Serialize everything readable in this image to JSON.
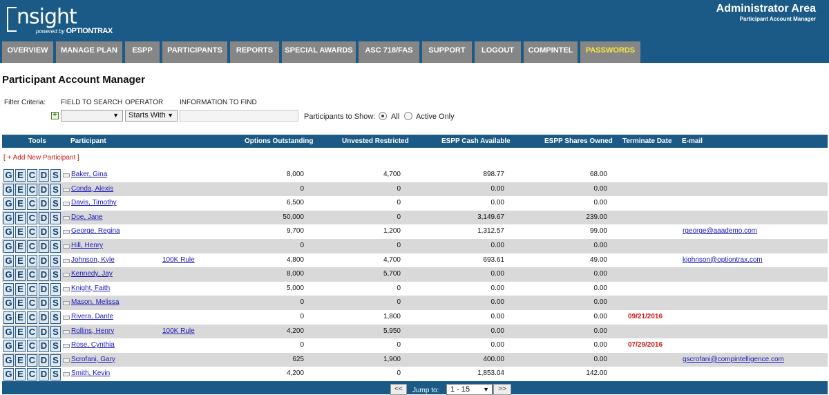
{
  "header": {
    "logo_text": "nsight",
    "logo_powered": "powered by",
    "logo_brand": "OPTIONTRAX",
    "admin_title": "Administrator Area",
    "admin_subtitle": "Participant Account Manager"
  },
  "nav": {
    "items": [
      {
        "label": "OVERVIEW"
      },
      {
        "label": "MANAGE PLAN"
      },
      {
        "label": "ESPP"
      },
      {
        "label": "PARTICIPANTS"
      },
      {
        "label": "REPORTS"
      },
      {
        "label": "SPECIAL AWARDS"
      },
      {
        "label": "ASC 718/FAS"
      },
      {
        "label": "SUPPORT"
      },
      {
        "label": "LOGOUT"
      },
      {
        "label": "COMPINTEL"
      },
      {
        "label": "PASSWORDS"
      }
    ]
  },
  "page_title": "Participant Account Manager",
  "filter": {
    "criteria_label": "Filter Criteria:",
    "field_label": "FIELD TO SEARCH",
    "operator_label": "OPERATOR",
    "info_label": "INFORMATION TO FIND",
    "field_value": "",
    "operator_value": "Starts With",
    "info_value": "",
    "show_label": "Participants to Show:",
    "all_label": "All",
    "active_label": "Active Only"
  },
  "table": {
    "headers": {
      "tools": "Tools",
      "participant": "Participant",
      "options": "Options Outstanding",
      "unvested": "Unvested Restricted",
      "espp_cash": "ESPP Cash Available",
      "espp_shares": "ESPP Shares Owned",
      "terminate": "Terminate Date",
      "email": "E-mail"
    },
    "add_label": "[ + Add New Participant ]",
    "tool_buttons": [
      "G",
      "E",
      "C",
      "D",
      "S"
    ],
    "rows": [
      {
        "name": "Baker, Gina",
        "rule": "",
        "options": "8,000",
        "unvested": "4,700",
        "cash": "898.77",
        "shares": "68.00",
        "terminate": "",
        "email": ""
      },
      {
        "name": "Conda, Alexis",
        "rule": "",
        "options": "0",
        "unvested": "0",
        "cash": "0.00",
        "shares": "0.00",
        "terminate": "",
        "email": ""
      },
      {
        "name": "Davis, Timothy",
        "rule": "",
        "options": "6,500",
        "unvested": "0",
        "cash": "0.00",
        "shares": "0.00",
        "terminate": "",
        "email": ""
      },
      {
        "name": "Doe, Jane",
        "rule": "",
        "options": "50,000",
        "unvested": "0",
        "cash": "3,149.67",
        "shares": "239.00",
        "terminate": "",
        "email": ""
      },
      {
        "name": "George, Regina",
        "rule": "",
        "options": "9,700",
        "unvested": "1,200",
        "cash": "1,312.57",
        "shares": "99.00",
        "terminate": "",
        "email": "rgeorge@aaademo.com"
      },
      {
        "name": "Hill, Henry",
        "rule": "",
        "options": "0",
        "unvested": "0",
        "cash": "0.00",
        "shares": "0.00",
        "terminate": "",
        "email": ""
      },
      {
        "name": "Johnson, Kyle",
        "rule": "100K Rule",
        "options": "4,800",
        "unvested": "4,700",
        "cash": "693.61",
        "shares": "49.00",
        "terminate": "",
        "email": "kjohnson@optiontrax.com"
      },
      {
        "name": "Kennedy, Jay",
        "rule": "",
        "options": "8,000",
        "unvested": "5,700",
        "cash": "0.00",
        "shares": "0.00",
        "terminate": "",
        "email": ""
      },
      {
        "name": "Knight, Faith",
        "rule": "",
        "options": "5,000",
        "unvested": "0",
        "cash": "0.00",
        "shares": "0.00",
        "terminate": "",
        "email": ""
      },
      {
        "name": "Mason, Melissa",
        "rule": "",
        "options": "0",
        "unvested": "0",
        "cash": "0.00",
        "shares": "0.00",
        "terminate": "",
        "email": ""
      },
      {
        "name": "Rivera, Dante",
        "rule": "",
        "options": "0",
        "unvested": "1,800",
        "cash": "0.00",
        "shares": "0.00",
        "terminate": "09/21/2016",
        "email": ""
      },
      {
        "name": "Rollins, Henry",
        "rule": "100K Rule",
        "options": "4,200",
        "unvested": "5,950",
        "cash": "0.00",
        "shares": "0.00",
        "terminate": "",
        "email": ""
      },
      {
        "name": "Rose, Cynthia",
        "rule": "",
        "options": "0",
        "unvested": "0",
        "cash": "0.00",
        "shares": "0.00",
        "terminate": "07/29/2016",
        "email": ""
      },
      {
        "name": "Scrofani, Gary",
        "rule": "",
        "options": "625",
        "unvested": "1,900",
        "cash": "400.00",
        "shares": "0.00",
        "terminate": "",
        "email": "gscrofani@compintelligence.com"
      },
      {
        "name": "Smith, Kevin",
        "rule": "",
        "options": "4,200",
        "unvested": "0",
        "cash": "1,853.04",
        "shares": "142.00",
        "terminate": "",
        "email": ""
      }
    ]
  },
  "pagination": {
    "prev": "<<",
    "next": ">>",
    "jump_label": "Jump to:",
    "jump_value": "1 - 15"
  },
  "colors": {
    "header_bg": "#1b5a86",
    "nav_tab": "#868686",
    "nav_highlight_text": "#f5e93f",
    "alert_red": "#d01818",
    "link": "#1a1ab8"
  }
}
